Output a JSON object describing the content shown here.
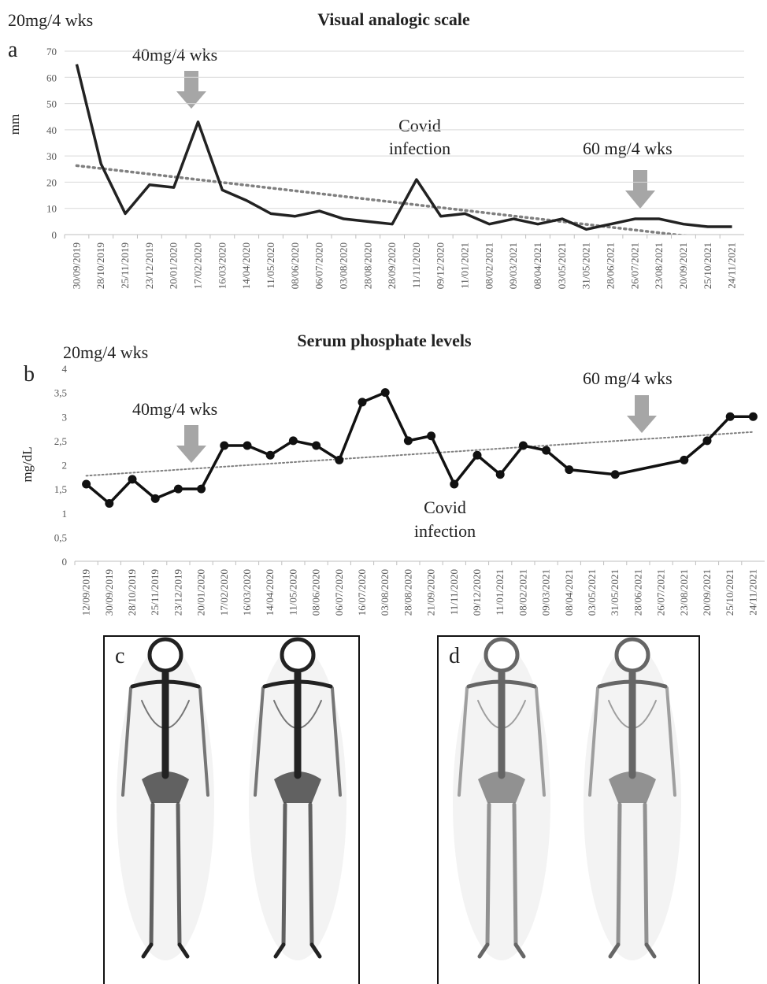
{
  "chart_data": [
    {
      "type": "line",
      "panel_label": "a",
      "title": "Visual analogic scale",
      "y_label": "mm",
      "annotations": [
        "20mg/4 wks",
        "40mg/4 wks",
        "Covid",
        "infection",
        "60 mg/4 wks"
      ],
      "categories": [
        "30/09/2019",
        "28/10/2019",
        "25/11/2019",
        "23/12/2019",
        "20/01/2020",
        "17/02/2020",
        "16/03/2020",
        "14/04/2020",
        "11/05/2020",
        "08/06/2020",
        "06/07/2020",
        "03/08/2020",
        "28/08/2020",
        "28/09/2020",
        "11/11/2020",
        "09/12/2020",
        "11/01/2021",
        "08/02/2021",
        "09/03/2021",
        "08/04/2021",
        "03/05/2021",
        "31/05/2021",
        "28/06/2021",
        "26/07/2021",
        "23/08/2021",
        "20/09/2021",
        "25/10/2021",
        "24/11/2021"
      ],
      "values": [
        65,
        27,
        8,
        19,
        18,
        43,
        17,
        13,
        8,
        7,
        9,
        6,
        5,
        4,
        21,
        7,
        8,
        4,
        6,
        4,
        6,
        2,
        4,
        6,
        6,
        4,
        3,
        3
      ],
      "color": "#222222",
      "markers": false,
      "trendline": true,
      "trend_color": "#808080",
      "grid": true,
      "ylim": [
        0,
        70
      ],
      "yticks": [
        0,
        10,
        20,
        30,
        40,
        50,
        60,
        70
      ]
    },
    {
      "type": "line",
      "panel_label": "b",
      "title": "Serum phosphate levels",
      "y_label": "mg/dL",
      "annotations": [
        "20mg/4 wks",
        "40mg/4 wks",
        "Covid",
        "infection",
        "60 mg/4 wks"
      ],
      "categories": [
        "12/09/2019",
        "30/09/2019",
        "28/10/2019",
        "25/11/2019",
        "23/12/2019",
        "20/01/2020",
        "17/02/2020",
        "16/03/2020",
        "14/04/2020",
        "11/05/2020",
        "08/06/2020",
        "06/07/2020",
        "16/07/2020",
        "03/08/2020",
        "28/08/2020",
        "21/09/2020",
        "11/11/2020",
        "09/12/2020",
        "11/01/2021",
        "08/02/2021",
        "09/03/2021",
        "08/04/2021",
        "03/05/2021",
        "31/05/2021",
        "28/06/2021",
        "26/07/2021",
        "23/08/2021",
        "20/09/2021",
        "25/10/2021",
        "24/11/2021"
      ],
      "values": [
        1.6,
        1.2,
        1.7,
        1.3,
        1.5,
        1.5,
        2.4,
        2.4,
        2.2,
        2.5,
        2.4,
        2.1,
        3.3,
        3.5,
        2.5,
        2.6,
        1.6,
        2.2,
        1.8,
        2.4,
        2.3,
        1.9,
        null,
        1.8,
        null,
        null,
        2.1,
        2.5,
        3.0,
        3.0
      ],
      "color": "#111111",
      "markers": true,
      "connect_gaps": true,
      "trendline": true,
      "trend_color": "#808080",
      "grid": false,
      "ylim": [
        0,
        4
      ],
      "yticks": [
        0,
        {
          "value": 0.5,
          "label": "0,5"
        },
        1,
        {
          "value": 1.5,
          "label": "1,5"
        },
        2,
        {
          "value": 2.5,
          "label": "2,5"
        },
        3,
        {
          "value": 3.5,
          "label": "3,5"
        },
        4
      ]
    }
  ],
  "panels": [
    {
      "label": "c"
    },
    {
      "label": "d"
    }
  ]
}
